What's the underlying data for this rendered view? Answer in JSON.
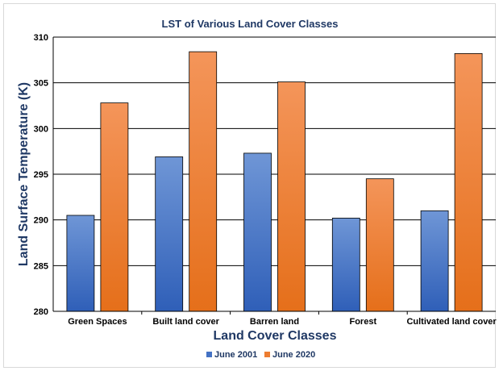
{
  "chart_data": {
    "type": "bar",
    "title": "LST of Various Land Cover Classes",
    "xlabel": "Land Cover Classes",
    "ylabel": "Land Surface Temperature (K)",
    "ylim": [
      280,
      310
    ],
    "yticks": [
      280,
      285,
      290,
      295,
      300,
      305,
      310
    ],
    "grid": true,
    "legend_position": "bottom",
    "categories": [
      "Green Spaces",
      "Built land cover",
      "Barren land",
      "Forest",
      "Cultivated land cover"
    ],
    "series": [
      {
        "name": "June 2001",
        "color": "#4472c4",
        "values": [
          290.5,
          296.9,
          297.3,
          290.2,
          291.0
        ]
      },
      {
        "name": "June 2020",
        "color": "#ed7d31",
        "values": [
          302.8,
          308.4,
          305.1,
          294.5,
          308.2
        ]
      }
    ]
  }
}
